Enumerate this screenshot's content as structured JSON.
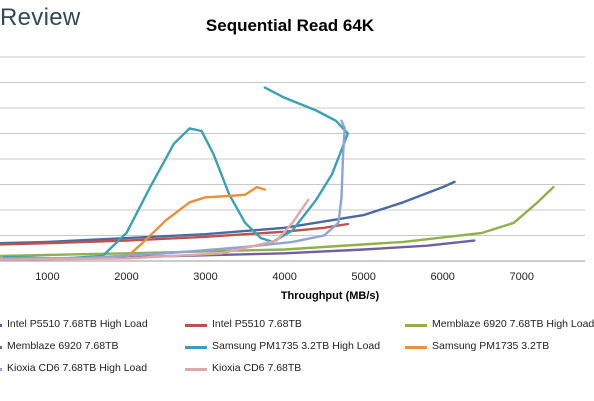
{
  "brand": "Review",
  "chart_data": {
    "type": "line",
    "title": "Sequential Read 64K",
    "xlabel": "Throughput (MB/s)",
    "ylabel": "",
    "xlim": [
      400,
      7800
    ],
    "ylim": [
      0,
      8
    ],
    "xticks": [
      1000,
      2000,
      3000,
      4000,
      5000,
      6000,
      7000
    ],
    "xtick_labels": [
      "1000",
      "2000",
      "3000",
      "4000",
      "5000",
      "6000",
      "7000"
    ],
    "grid": "horizontal",
    "legend_position": "bottom",
    "series": [
      {
        "name": "Intel P5510 7.68TB High Load",
        "color": "#4a6aa0",
        "points": [
          [
            400,
            0.7
          ],
          [
            1000,
            0.75
          ],
          [
            2000,
            0.9
          ],
          [
            3000,
            1.05
          ],
          [
            4000,
            1.3
          ],
          [
            5000,
            1.8
          ],
          [
            5500,
            2.3
          ],
          [
            6000,
            2.9
          ],
          [
            6150,
            3.1
          ]
        ]
      },
      {
        "name": "Intel P5510 7.68TB",
        "color": "#c0504d",
        "points": [
          [
            400,
            0.65
          ],
          [
            1000,
            0.7
          ],
          [
            2000,
            0.8
          ],
          [
            3000,
            0.95
          ],
          [
            4000,
            1.15
          ],
          [
            4500,
            1.3
          ],
          [
            4800,
            1.45
          ]
        ]
      },
      {
        "name": "Memblaze 6920 7.68TB High Load",
        "color": "#8fb04a",
        "points": [
          [
            400,
            0.2
          ],
          [
            2000,
            0.3
          ],
          [
            4000,
            0.45
          ],
          [
            5500,
            0.75
          ],
          [
            6500,
            1.1
          ],
          [
            6900,
            1.5
          ],
          [
            7200,
            2.3
          ],
          [
            7400,
            2.9
          ]
        ]
      },
      {
        "name": "Memblaze 6920 7.68TB",
        "color": "#7060a0",
        "points": [
          [
            400,
            0.05
          ],
          [
            2000,
            0.15
          ],
          [
            4000,
            0.3
          ],
          [
            5000,
            0.45
          ],
          [
            5800,
            0.6
          ],
          [
            6400,
            0.8
          ]
        ]
      },
      {
        "name": "Samsung PM1735 3.2TB High Load",
        "color": "#3aa0b5",
        "points": [
          [
            450,
            0.15
          ],
          [
            1200,
            0.1
          ],
          [
            1700,
            0.2
          ],
          [
            2000,
            1.1
          ],
          [
            2300,
            2.9
          ],
          [
            2600,
            4.6
          ],
          [
            2800,
            5.2
          ],
          [
            2950,
            5.1
          ],
          [
            3100,
            4.2
          ],
          [
            3300,
            2.6
          ],
          [
            3500,
            1.5
          ],
          [
            3700,
            0.9
          ],
          [
            3850,
            0.75
          ],
          [
            4100,
            1.2
          ],
          [
            4400,
            2.4
          ],
          [
            4600,
            3.4
          ],
          [
            4750,
            4.6
          ],
          [
            4800,
            5.0
          ],
          [
            4650,
            5.5
          ],
          [
            4400,
            5.9
          ],
          [
            4000,
            6.4
          ],
          [
            3750,
            6.8
          ]
        ]
      },
      {
        "name": "Samsung PM1735 3.2TB",
        "color": "#e8903a",
        "points": [
          [
            2000,
            0.15
          ],
          [
            2200,
            0.7
          ],
          [
            2500,
            1.6
          ],
          [
            2800,
            2.3
          ],
          [
            3000,
            2.5
          ],
          [
            3300,
            2.55
          ],
          [
            3500,
            2.6
          ],
          [
            3650,
            2.9
          ],
          [
            3750,
            2.8
          ]
        ]
      },
      {
        "name": "Kioxia CD6 7.68TB High Load",
        "color": "#8fa3d6",
        "points": [
          [
            400,
            0.1
          ],
          [
            1500,
            0.12
          ],
          [
            2500,
            0.3
          ],
          [
            3500,
            0.55
          ],
          [
            4100,
            0.75
          ],
          [
            4500,
            1.0
          ],
          [
            4680,
            1.5
          ],
          [
            4720,
            2.5
          ],
          [
            4740,
            4.2
          ],
          [
            4760,
            5.2
          ],
          [
            4720,
            5.5
          ]
        ]
      },
      {
        "name": "Kioxia CD6 7.68TB",
        "color": "#e0a8a8",
        "points": [
          [
            400,
            0.05
          ],
          [
            2000,
            0.1
          ],
          [
            3200,
            0.3
          ],
          [
            3900,
            0.8
          ],
          [
            4100,
            1.5
          ],
          [
            4300,
            2.4
          ]
        ]
      }
    ]
  }
}
